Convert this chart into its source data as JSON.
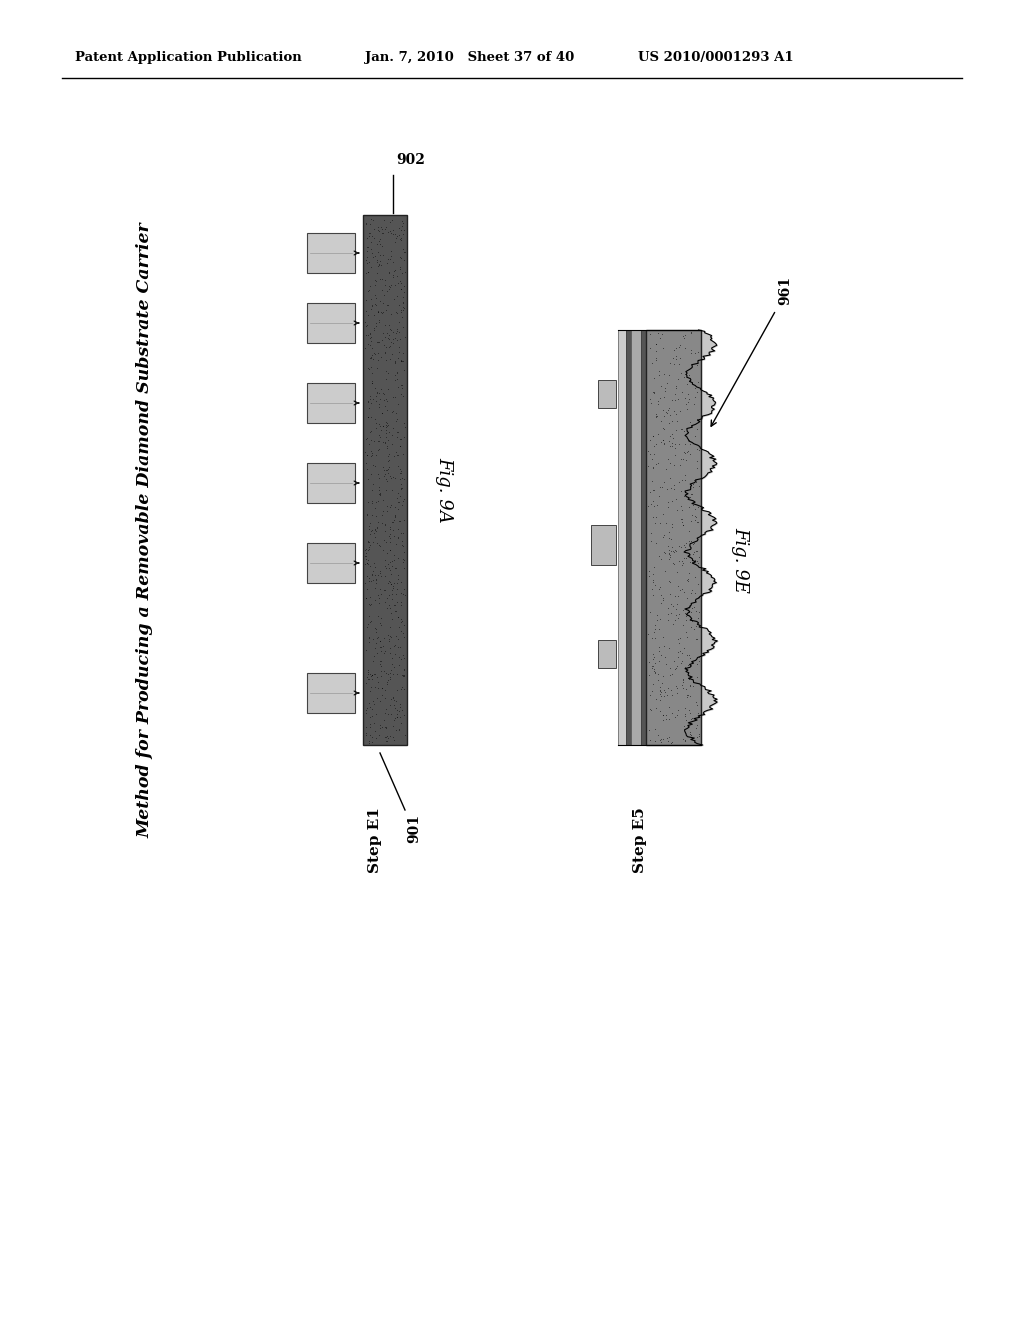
{
  "bg_color": "#ffffff",
  "header_left": "Patent Application Publication",
  "header_mid": "Jan. 7, 2010   Sheet 37 of 40",
  "header_right": "US 2010/0001293 A1",
  "side_title": "Method for Producing a Removable Diamond Substrate Carrier",
  "fig9A_label": "Fig. 9A",
  "fig9E_label": "Fig. 9E",
  "step_e1_label": "Step E1",
  "step_e5_label": "Step E5",
  "label_902": "902",
  "label_901": "901",
  "label_961": "961",
  "bar_dark": "#555555",
  "bar_medium": "#888888",
  "bar_light": "#b8b8b8",
  "sq_fill": "#c8c8c8",
  "layer_fill1": "#999999",
  "layer_fill2": "#cccccc",
  "layer_fill3": "#aaaaaa",
  "wavy_fill": "#aaaaaa"
}
